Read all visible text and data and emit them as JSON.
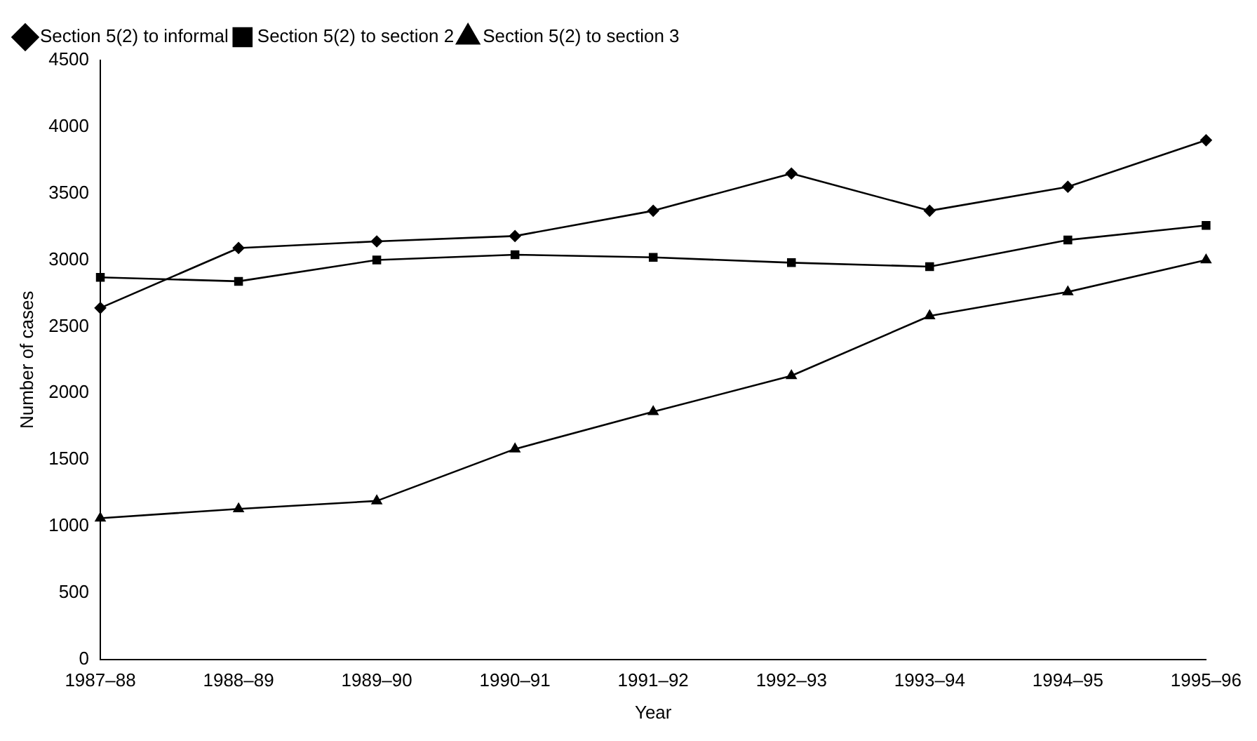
{
  "chart_data": {
    "type": "line",
    "xlabel": "Year",
    "ylabel": "Number of cases",
    "categories": [
      "1987–88",
      "1988–89",
      "1989–90",
      "1990–91",
      "1991–92",
      "1992–93",
      "1993–94",
      "1994–95",
      "1995–96"
    ],
    "series": [
      {
        "name": "Section 5(2) to informal",
        "color": "#000000",
        "marker": "diamond",
        "values": [
          2640,
          3090,
          3140,
          3180,
          3370,
          3650,
          3370,
          3550,
          3900
        ]
      },
      {
        "name": "Section 5(2) to section 2",
        "color": "#000000",
        "marker": "square",
        "values": [
          2870,
          2840,
          3000,
          3040,
          3020,
          2980,
          2950,
          3150,
          3260
        ]
      },
      {
        "name": "Section 5(2) to section 3",
        "color": "#000000",
        "marker": "triangle",
        "values": [
          1060,
          1130,
          1190,
          1580,
          1860,
          2130,
          2580,
          2760,
          3000
        ]
      }
    ],
    "ylim": [
      0,
      4500
    ],
    "yticks": [
      0,
      500,
      1000,
      1500,
      2000,
      2500,
      3000,
      3500,
      4000,
      4500
    ],
    "grid": false,
    "legend": "top left",
    "line_style": "solid"
  }
}
